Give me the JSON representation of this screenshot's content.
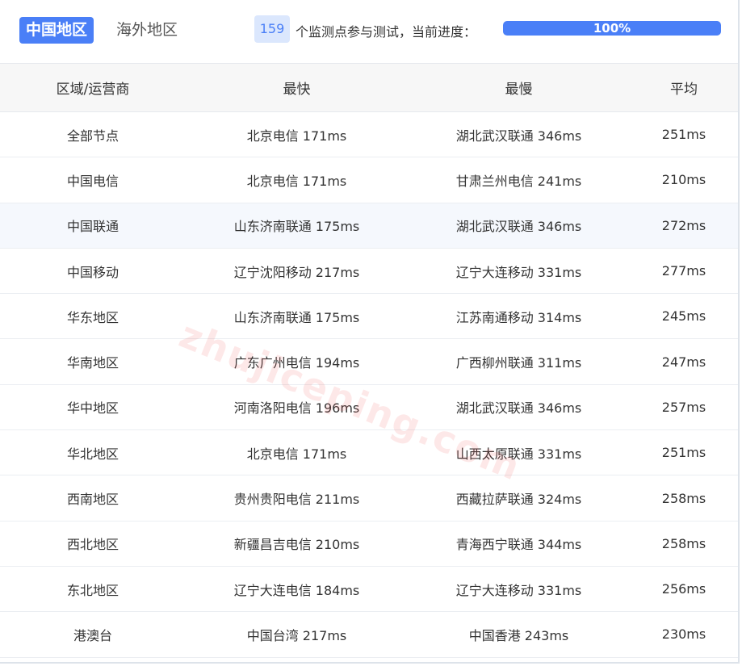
{
  "tabs": [
    {
      "label": "中国地区",
      "active": true
    },
    {
      "label": "海外地区",
      "active": false
    }
  ],
  "monitor": {
    "count": "159",
    "text": "个监测点参与测试，当前进度：",
    "progress_label": "100%",
    "progress": 100
  },
  "colors": {
    "accent": "#4a7ff7"
  },
  "table": {
    "headers": [
      "区域/运营商",
      "最快",
      "最慢",
      "平均"
    ],
    "rows": [
      [
        "全部节点",
        "北京电信 171ms",
        "湖北武汉联通 346ms",
        "251ms"
      ],
      [
        "中国电信",
        "北京电信 171ms",
        "甘肃兰州电信 241ms",
        "210ms"
      ],
      [
        "中国联通",
        "山东济南联通 175ms",
        "湖北武汉联通 346ms",
        "272ms"
      ],
      [
        "中国移动",
        "辽宁沈阳移动 217ms",
        "辽宁大连移动 331ms",
        "277ms"
      ],
      [
        "华东地区",
        "山东济南联通 175ms",
        "江苏南通移动 314ms",
        "245ms"
      ],
      [
        "华南地区",
        "广东广州电信 194ms",
        "广西柳州联通 311ms",
        "247ms"
      ],
      [
        "华中地区",
        "河南洛阳电信 196ms",
        "湖北武汉联通 346ms",
        "257ms"
      ],
      [
        "华北地区",
        "北京电信 171ms",
        "山西太原联通 331ms",
        "251ms"
      ],
      [
        "西南地区",
        "贵州贵阳电信 211ms",
        "西藏拉萨联通 324ms",
        "258ms"
      ],
      [
        "西北地区",
        "新疆昌吉电信 210ms",
        "青海西宁联通 344ms",
        "258ms"
      ],
      [
        "东北地区",
        "辽宁大连电信 184ms",
        "辽宁大连移动 331ms",
        "256ms"
      ],
      [
        "港澳台",
        "中国台湾 217ms",
        "中国香港 243ms",
        "230ms"
      ]
    ]
  },
  "watermark": "zhujiceping.com"
}
